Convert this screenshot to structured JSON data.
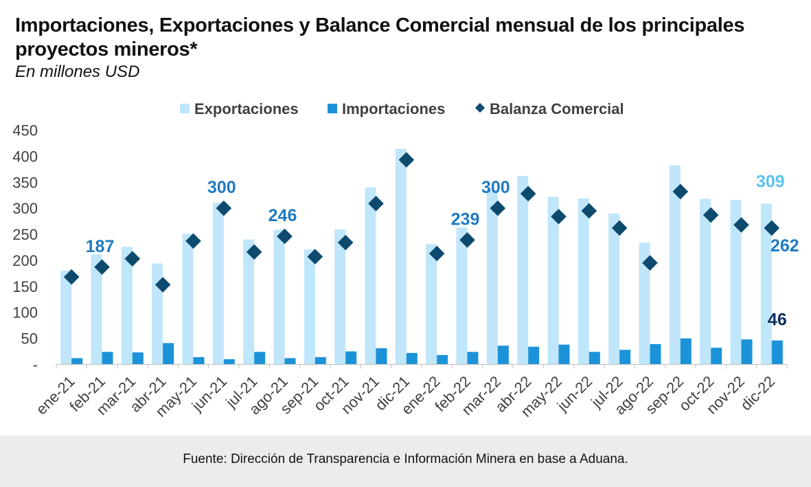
{
  "title": "Importaciones, Exportaciones y Balance Comercial mensual de los principales proyectos mineros*",
  "subtitle": "En millones  USD",
  "source": "Fuente: Dirección de Transparencia e Información Minera en base a Aduana.",
  "colors": {
    "exports": "#bfe6fb",
    "imports": "#1c93d8",
    "balance": "#0d4a6e",
    "label_blue": "#1f7bc1",
    "label_light": "#5cc3f0",
    "label_navy": "#0f2e5e"
  },
  "chart_data": {
    "type": "bar",
    "title": "Importaciones, Exportaciones y Balance Comercial mensual de los principales proyectos mineros*",
    "ylabel": "En millones  USD",
    "ylim": [
      0,
      450
    ],
    "yticks": [
      "-",
      "50",
      "100",
      "150",
      "200",
      "250",
      "300",
      "350",
      "400",
      "450"
    ],
    "legend_position": "top",
    "categories": [
      "ene-21",
      "feb-21",
      "mar-21",
      "abr-21",
      "may-21",
      "jun-21",
      "jul-21",
      "ago-21",
      "sep-21",
      "oct-21",
      "nov-21",
      "dic-21",
      "ene-22",
      "feb-22",
      "mar-22",
      "abr-22",
      "may-22",
      "jun-22",
      "jul-22",
      "ago-22",
      "sep-22",
      "oct-22",
      "nov-22",
      "dic-22"
    ],
    "series": [
      {
        "name": "Exportaciones",
        "kind": "bar",
        "values": [
          180,
          211,
          226,
          194,
          251,
          311,
          240,
          259,
          221,
          259,
          340,
          414,
          231,
          263,
          336,
          362,
          322,
          319,
          290,
          234,
          382,
          318,
          316,
          309
        ]
      },
      {
        "name": "Importaciones",
        "kind": "bar",
        "values": [
          12,
          24,
          23,
          41,
          14,
          10,
          24,
          12,
          14,
          25,
          31,
          22,
          18,
          24,
          36,
          34,
          38,
          24,
          28,
          39,
          50,
          32,
          48,
          46
        ]
      },
      {
        "name": "Balanza Comercial",
        "kind": "marker",
        "values": [
          168,
          187,
          203,
          153,
          237,
          300,
          216,
          246,
          207,
          234,
          309,
          393,
          213,
          239,
          300,
          328,
          284,
          295,
          262,
          195,
          332,
          287,
          268,
          262
        ]
      }
    ],
    "annotations": [
      {
        "series": "Balanza Comercial",
        "category": "feb-21",
        "text": "187"
      },
      {
        "series": "Balanza Comercial",
        "category": "jun-21",
        "text": "300"
      },
      {
        "series": "Balanza Comercial",
        "category": "ago-21",
        "text": "246"
      },
      {
        "series": "Balanza Comercial",
        "category": "feb-22",
        "text": "239"
      },
      {
        "series": "Balanza Comercial",
        "category": "mar-22",
        "text": "300"
      },
      {
        "series": "Exportaciones",
        "category": "dic-22",
        "text": "309"
      },
      {
        "series": "Balanza Comercial",
        "category": "dic-22",
        "text": "262"
      },
      {
        "series": "Importaciones",
        "category": "dic-22",
        "text": "46"
      }
    ]
  }
}
